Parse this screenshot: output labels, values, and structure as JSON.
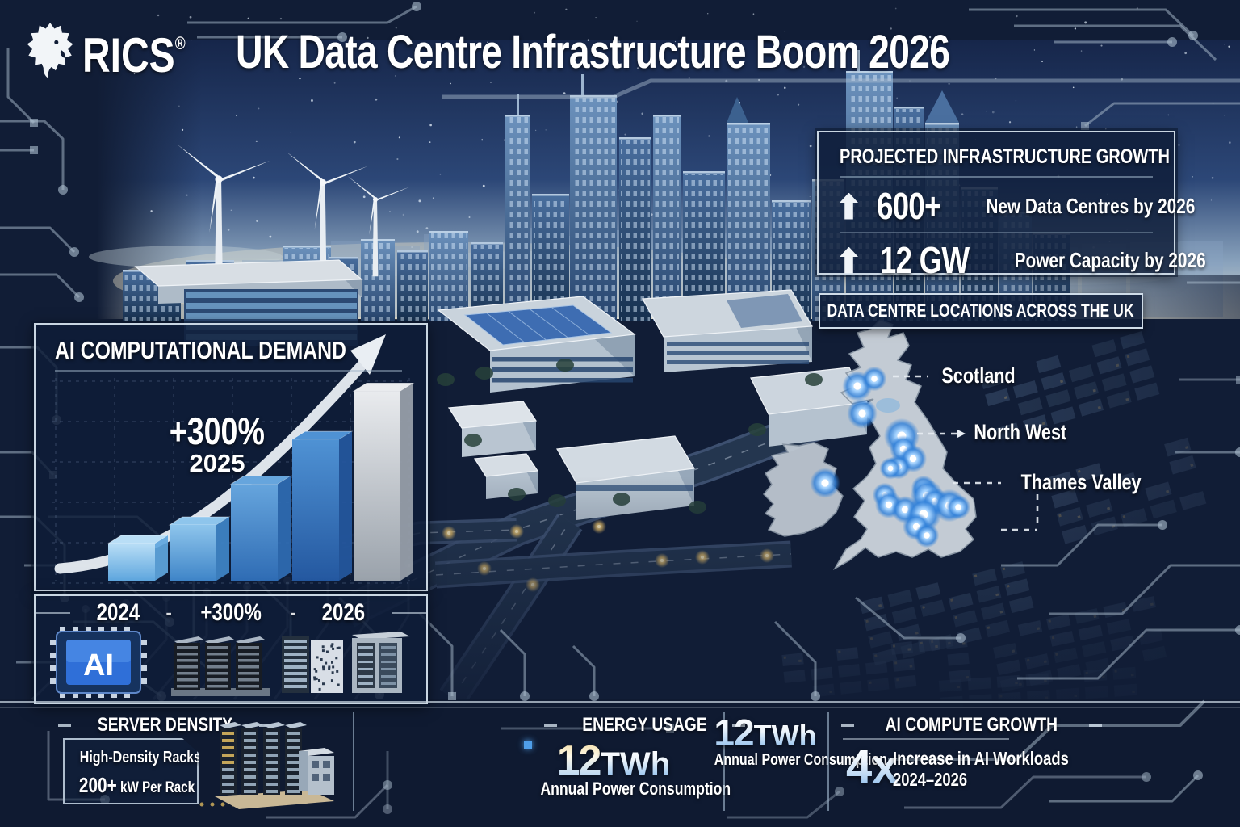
{
  "brand": {
    "name": "RICS",
    "registered": "®"
  },
  "title": "UK Data Centre Infrastructure Boom 2026",
  "growth_panel": {
    "title": "PROJECTED INFRASTRUCTURE GROWTH",
    "items": [
      {
        "value": "600+",
        "label": "New Data Centres by 2026"
      },
      {
        "value": "12 GW",
        "label": "Power Capacity by 2026"
      }
    ]
  },
  "map_panel": {
    "title": "DATA CENTRE LOCATIONS ACROSS THE UK",
    "regions": [
      {
        "label": "Scotland"
      },
      {
        "label": "North West"
      },
      {
        "label": "Thames Valley"
      }
    ]
  },
  "demand_panel": {
    "title": "AI COMPUTATIONAL DEMAND",
    "annotation_value": "+300%",
    "annotation_year": "2025",
    "axis_labels": [
      "2024",
      "+300%",
      "2026"
    ],
    "axis_separator": "-",
    "chip_label": "AI"
  },
  "chart_data": {
    "type": "bar",
    "title": "AI Computational Demand",
    "x_labels": [
      "2024",
      "+300%",
      "2026"
    ],
    "annotation": {
      "value": "+300%",
      "year": "2025"
    },
    "values_relative": [
      1,
      1.5,
      2.6,
      3.8,
      5.1
    ],
    "ylim": [
      0,
      5.5
    ],
    "bar_colors": [
      "#a9d7f5",
      "#7db9e8",
      "#5596d6",
      "#3f7cc4",
      "#c6cdd4"
    ]
  },
  "bottom_panels": [
    {
      "heading": "SERVER DENSITY",
      "line1": "High-Density Racks",
      "value": "200+",
      "unit": "kW Per Rack"
    },
    {
      "heading": "ENERGY USAGE",
      "value": "12",
      "unit": "TWh",
      "label": "Annual Power Consumption"
    },
    {
      "value": "12",
      "unit": "TWh",
      "label": "Annual Power Consumption"
    },
    {
      "heading": "AI COMPUTE GROWTH",
      "value": "4x",
      "label1": "Increase in AI Workloads",
      "label2": "2024–2026"
    }
  ]
}
